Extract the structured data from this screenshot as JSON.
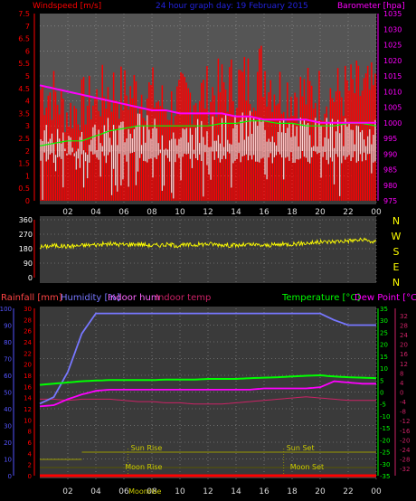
{
  "header": {
    "windspeed_label": "Windspeed [m/s]",
    "title": "24 hour graph day:  19 February 2015",
    "barometer_label": "Barometer [hpa]"
  },
  "colors": {
    "background": "#000000",
    "plot_bg_top": "#555555",
    "plot_bg_mid": "#3a3a3a",
    "windspeed": "#ff0000",
    "gust_fill": "#ffffff",
    "wind_avg": "#00ff00",
    "barometer": "#ff00ff",
    "wind_dir": "#ffff00",
    "humidity": "#7777ff",
    "indoor_hum": "#ff66ff",
    "indoor_temp": "#cc2266",
    "temperature": "#00ff00",
    "dew_point": "#ff00ff",
    "rainfall": "#ff0000",
    "sun_moon": "#999900",
    "axis_red": "#ff0000",
    "axis_magenta": "#ff00ff",
    "axis_blue": "#5555ff",
    "axis_green": "#00ff00",
    "compass": "#ffff00"
  },
  "x_axis": {
    "ticks": [
      "02",
      "04",
      "06",
      "08",
      "10",
      "12",
      "14",
      "16",
      "18",
      "20",
      "22",
      "00"
    ]
  },
  "chart_data": [
    {
      "type": "area",
      "panel": "wind-barometer",
      "title": "24 hour graph day:  19 February 2015",
      "ylabel_left": "Windspeed [m/s]",
      "ylabel_right": "Barometer [hpa]",
      "ylim_left": [
        0,
        7.5
      ],
      "ylim_right": [
        975,
        1035
      ],
      "left_ticks": [
        "0",
        "0.5",
        "1",
        "1.5",
        "2",
        "2.5",
        "3",
        "3.5",
        "4",
        "4.5",
        "5",
        "5.5",
        "6",
        "6.5",
        "7",
        "7.5"
      ],
      "right_ticks": [
        "975",
        "980",
        "985",
        "990",
        "995",
        "1000",
        "1005",
        "1010",
        "1015",
        "1020",
        "1025",
        "1030",
        "1035"
      ],
      "hours": [
        0,
        1,
        2,
        3,
        4,
        5,
        6,
        7,
        8,
        9,
        10,
        11,
        12,
        13,
        14,
        15,
        16,
        17,
        18,
        19,
        20,
        21,
        22,
        23,
        24
      ],
      "series": [
        {
          "key": "gust",
          "values": [
            5.8,
            5.5,
            4.5,
            5.0,
            5.2,
            5.8,
            5.5,
            5.7,
            5.5,
            4.8,
            5.2,
            5.5,
            5.5,
            5.8,
            6.0,
            6.2,
            6.8,
            5.7,
            5.7,
            5.5,
            5.5,
            5.5,
            5.7,
            5.7,
            5.5
          ]
        },
        {
          "key": "windspeed",
          "values": [
            3.5,
            3.3,
            3.0,
            3.2,
            3.5,
            3.8,
            3.7,
            3.9,
            3.8,
            3.5,
            3.5,
            3.7,
            3.7,
            3.9,
            3.9,
            4.1,
            4.0,
            3.8,
            3.8,
            3.7,
            3.7,
            3.7,
            3.8,
            3.8,
            3.7
          ]
        },
        {
          "key": "wind_avg",
          "values": [
            2.2,
            2.3,
            2.4,
            2.4,
            2.6,
            2.8,
            2.9,
            3.0,
            3.0,
            3.0,
            3.0,
            3.0,
            3.0,
            3.1,
            3.1,
            3.2,
            3.2,
            3.1,
            3.1,
            3.0,
            3.0,
            3.0,
            3.1,
            3.1,
            3.0
          ]
        },
        {
          "key": "barometer",
          "values": [
            1012,
            1011,
            1010,
            1009,
            1008,
            1007,
            1006,
            1005,
            1004,
            1004,
            1003,
            1003,
            1003,
            1003,
            1002,
            1002,
            1001,
            1001,
            1001,
            1001,
            1000,
            1000,
            1000,
            1000,
            1000
          ]
        }
      ]
    },
    {
      "type": "line",
      "panel": "wind-direction",
      "ylim": [
        0,
        360
      ],
      "ticks": [
        "0",
        "90",
        "180",
        "270",
        "360"
      ],
      "compass": [
        "N",
        "W",
        "S",
        "E",
        "N"
      ],
      "series": [
        {
          "key": "direction",
          "values": [
            190,
            200,
            195,
            200,
            205,
            210,
            205,
            210,
            200,
            205,
            200,
            205,
            210,
            205,
            200,
            205,
            200,
            205,
            210,
            215,
            220,
            225,
            230,
            235,
            220
          ]
        }
      ]
    },
    {
      "type": "line",
      "panel": "temperature-humidity",
      "labels": {
        "rainfall": "Rainfall [mm]",
        "humidity": "Humidity [%]",
        "indoor_hum": "Indoor hum",
        "indoor_temp": "Indoor temp",
        "temperature": "Temperature [°C]",
        "dew_point": "Dew Point [°C]"
      },
      "ylim_humidity": [
        0,
        100
      ],
      "ylim_rain": [
        0,
        30
      ],
      "ylim_temp": [
        -35,
        35
      ],
      "humidity_ticks": [
        "0",
        "10",
        "20",
        "30",
        "40",
        "50",
        "60",
        "70",
        "80",
        "90",
        "100"
      ],
      "rain_ticks": [
        "0",
        "2",
        "4",
        "6",
        "8",
        "10",
        "12",
        "14",
        "16",
        "18",
        "20",
        "22",
        "24",
        "26",
        "28",
        "30"
      ],
      "temp_ticks": [
        "-35",
        "-30",
        "-25",
        "-20",
        "-15",
        "-10",
        "-5",
        "0",
        "5",
        "10",
        "15",
        "20",
        "25",
        "30",
        "35"
      ],
      "temp_ticks_inner": [
        "-36",
        "-32",
        "-28",
        "-24",
        "-20",
        "-16",
        "-12",
        "-8",
        "-4",
        "0",
        "4",
        "8",
        "12",
        "16",
        "20",
        "24",
        "28",
        "32",
        "36"
      ],
      "hours": [
        0,
        1,
        2,
        3,
        4,
        5,
        6,
        7,
        8,
        9,
        10,
        11,
        12,
        13,
        14,
        15,
        16,
        17,
        18,
        19,
        20,
        21,
        22,
        23,
        24
      ],
      "series": [
        {
          "key": "humidity",
          "values": [
            43,
            47,
            62,
            85,
            97,
            97,
            97,
            97,
            97,
            97,
            97,
            97,
            97,
            97,
            97,
            97,
            97,
            97,
            97,
            97,
            97,
            93,
            90,
            90,
            90
          ]
        },
        {
          "key": "temperature",
          "values": [
            3.0,
            3.5,
            4.0,
            4.5,
            4.8,
            5.0,
            5.0,
            5.0,
            5.0,
            5.2,
            5.2,
            5.2,
            5.5,
            5.5,
            5.5,
            5.8,
            6.0,
            6.2,
            6.5,
            6.8,
            7.0,
            6.5,
            6.2,
            6.0,
            5.8
          ]
        },
        {
          "key": "dew_point",
          "values": [
            -6.0,
            -5.5,
            -3.0,
            -1.0,
            0.5,
            1.0,
            1.0,
            1.0,
            1.0,
            1.0,
            1.0,
            1.0,
            1.0,
            1.0,
            1.0,
            1.0,
            1.5,
            1.5,
            1.5,
            1.5,
            2.0,
            4.5,
            4.0,
            3.5,
            3.5
          ]
        },
        {
          "key": "indoor_temp",
          "values": [
            -3.0,
            -3.0,
            -3.5,
            -3.0,
            -3.0,
            -3.0,
            -3.5,
            -4.0,
            -4.0,
            -4.5,
            -4.5,
            -5.0,
            -5.0,
            -5.0,
            -4.5,
            -4.0,
            -3.5,
            -3.0,
            -2.5,
            -2.0,
            -2.5,
            -3.0,
            -3.5,
            -3.5,
            -3.5
          ]
        },
        {
          "key": "rainfall",
          "values": [
            0,
            0,
            0,
            0,
            0,
            0,
            0,
            0,
            0,
            0,
            0,
            0,
            0,
            0,
            0,
            0,
            0,
            0,
            0,
            0,
            0,
            0,
            0,
            0,
            0
          ]
        }
      ],
      "annotations": {
        "sun_rise_label": "Sun Rise",
        "sun_rise_hour": 6.3,
        "sun_set_label": "Sun Set",
        "sun_set_hour": 17.4,
        "moon_rise_label": "Moon Rise",
        "moon_rise_hour": 7.5,
        "moon_set_label": "Moon Set",
        "moon_set_hour": 18.5,
        "moonrise_axis_label": "Moonrise",
        "moonrise_axis_hour": 7.5
      }
    }
  ]
}
